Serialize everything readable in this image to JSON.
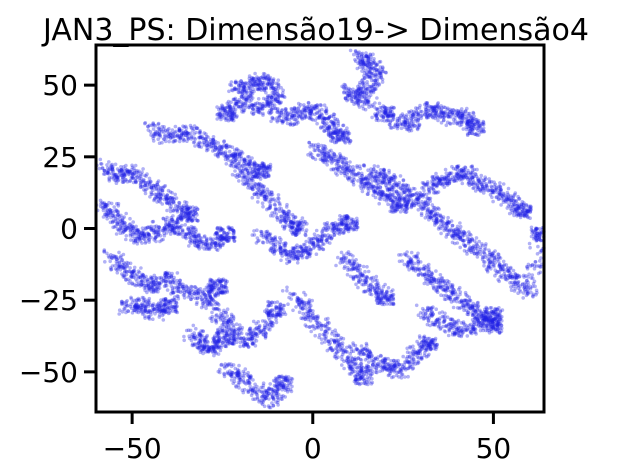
{
  "chart_data": {
    "type": "scatter",
    "title": "JAN3_PS: Dimensão19-> Dimensão4",
    "xlabel": "",
    "ylabel": "",
    "xlim": [
      -60,
      64
    ],
    "ylim": [
      -64,
      64
    ],
    "xticks": [
      {
        "value": -50,
        "label": "−50"
      },
      {
        "value": 0,
        "label": "0"
      },
      {
        "value": 50,
        "label": "50"
      }
    ],
    "yticks": [
      {
        "value": -50,
        "label": "−50"
      },
      {
        "value": -25,
        "label": "−25"
      },
      {
        "value": 0,
        "label": "0"
      },
      {
        "value": 25,
        "label": "25"
      },
      {
        "value": 50,
        "label": "50"
      }
    ],
    "grid": false,
    "point_color": "#1f1fe6",
    "point_alpha": 0.35,
    "clusters": [
      {
        "x": [
          -22,
          -18,
          -15,
          -12,
          -10,
          -14,
          -20,
          -24
        ],
        "y": [
          50,
          48,
          52,
          50,
          45,
          42,
          44,
          40
        ]
      },
      {
        "x": [
          -10,
          -6,
          -2,
          2,
          5,
          8
        ],
        "y": [
          40,
          38,
          42,
          40,
          36,
          32
        ]
      },
      {
        "x": [
          12,
          15,
          18,
          16,
          13,
          10,
          20
        ],
        "y": [
          60,
          58,
          55,
          50,
          45,
          48,
          40
        ]
      },
      {
        "x": [
          22,
          26,
          30,
          34,
          38,
          42,
          45
        ],
        "y": [
          38,
          36,
          40,
          42,
          38,
          40,
          35
        ]
      },
      {
        "x": [
          -45,
          -40,
          -35,
          -30,
          -26,
          -22,
          -18,
          -14
        ],
        "y": [
          35,
          32,
          34,
          30,
          28,
          25,
          22,
          20
        ]
      },
      {
        "x": [
          -58,
          -54,
          -50,
          -46,
          -42,
          -38,
          -34
        ],
        "y": [
          22,
          18,
          20,
          15,
          12,
          8,
          5
        ]
      },
      {
        "x": [
          -58,
          -55,
          -52,
          -48,
          -44,
          -40,
          -36,
          -32,
          -28,
          -24
        ],
        "y": [
          8,
          5,
          0,
          -3,
          -2,
          2,
          0,
          -4,
          -6,
          -2
        ]
      },
      {
        "x": [
          -56,
          -52,
          -48,
          -44,
          -40,
          -36,
          -30,
          -26
        ],
        "y": [
          -10,
          -14,
          -18,
          -20,
          -17,
          -22,
          -24,
          -20
        ]
      },
      {
        "x": [
          -52,
          -48,
          -44,
          -40
        ],
        "y": [
          -28,
          -26,
          -30,
          -27
        ]
      },
      {
        "x": [
          -20,
          -16,
          -12,
          -8,
          -4
        ],
        "y": [
          20,
          15,
          10,
          5,
          0
        ]
      },
      {
        "x": [
          -15,
          -10,
          -6,
          -2,
          2,
          6,
          10
        ],
        "y": [
          -2,
          -6,
          -10,
          -8,
          -4,
          0,
          2
        ]
      },
      {
        "x": [
          0,
          4,
          8,
          12,
          16,
          20,
          24
        ],
        "y": [
          28,
          25,
          22,
          18,
          15,
          12,
          8
        ]
      },
      {
        "x": [
          16,
          20,
          24,
          28,
          32,
          36,
          40,
          44,
          48,
          52,
          56,
          60,
          63
        ],
        "y": [
          20,
          18,
          14,
          10,
          6,
          2,
          -2,
          -6,
          -10,
          -14,
          -18,
          -22,
          -2
        ]
      },
      {
        "x": [
          30,
          34,
          38,
          42,
          46,
          50,
          54,
          58
        ],
        "y": [
          12,
          15,
          18,
          20,
          16,
          14,
          10,
          6
        ]
      },
      {
        "x": [
          26,
          30,
          34,
          38,
          42,
          46,
          50
        ],
        "y": [
          -10,
          -14,
          -18,
          -22,
          -26,
          -30,
          -34
        ]
      },
      {
        "x": [
          30,
          35,
          40,
          45,
          50
        ],
        "y": [
          -28,
          -32,
          -36,
          -34,
          -30
        ]
      },
      {
        "x": [
          -30,
          -26,
          -22,
          -18,
          -14,
          -10
        ],
        "y": [
          -24,
          -30,
          -36,
          -40,
          -35,
          -28
        ]
      },
      {
        "x": [
          -24,
          -20,
          -16,
          -12,
          -8
        ],
        "y": [
          -48,
          -52,
          -56,
          -60,
          -54
        ]
      },
      {
        "x": [
          -6,
          -2,
          2,
          6,
          10,
          14
        ],
        "y": [
          -22,
          -28,
          -34,
          -40,
          -46,
          -52
        ]
      },
      {
        "x": [
          8,
          12,
          16,
          20
        ],
        "y": [
          -10,
          -14,
          -20,
          -24
        ]
      },
      {
        "x": [
          12,
          16,
          20,
          24,
          28,
          32
        ],
        "y": [
          -42,
          -46,
          -48,
          -50,
          -44,
          -40
        ]
      },
      {
        "x": [
          -34,
          -30,
          -28,
          -24
        ],
        "y": [
          -36,
          -40,
          -42,
          -38
        ]
      }
    ]
  }
}
